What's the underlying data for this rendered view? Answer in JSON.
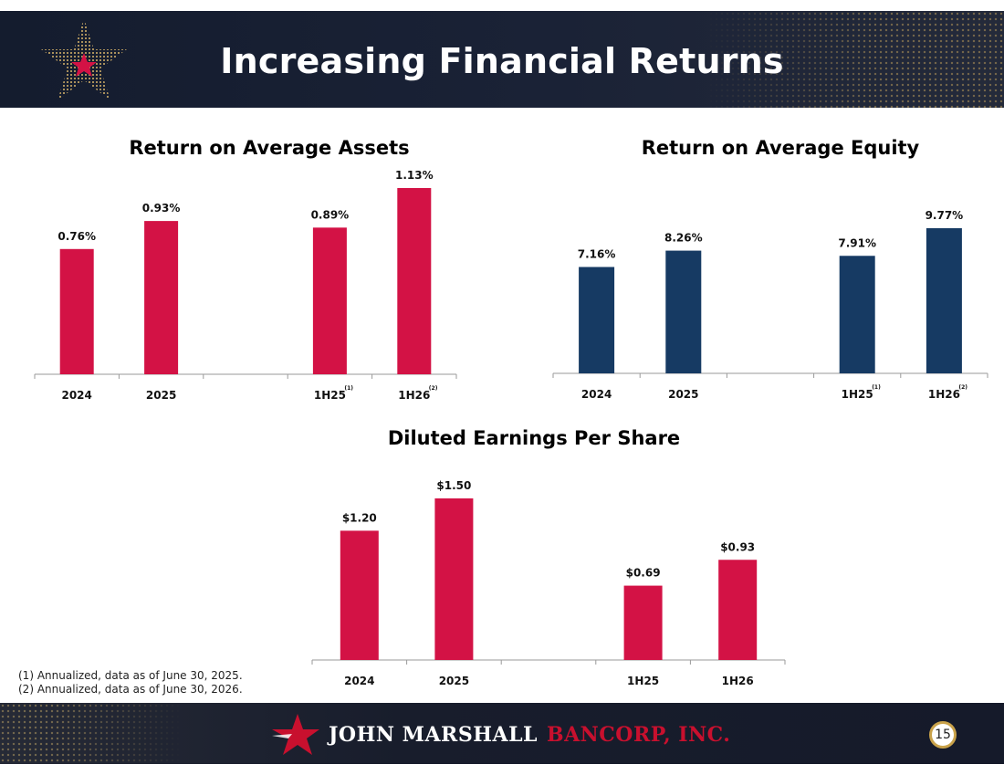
{
  "header": {
    "title": "Increasing Financial Returns",
    "logo_icon": "gold-star-logo-icon"
  },
  "colors": {
    "header_bg": "#141c2e",
    "red_bar": "#d31245",
    "navy_bar": "#163a63",
    "brand_red": "#c8102e",
    "gold": "#c9a24a"
  },
  "chart_data": [
    {
      "type": "bar",
      "title": "Return on Average Assets",
      "categories": [
        "2024",
        "2025",
        "",
        "1H25",
        "1H26"
      ],
      "category_notes": [
        "",
        "",
        "",
        "(1)",
        "(2)"
      ],
      "values": [
        0.76,
        0.93,
        null,
        0.89,
        1.13
      ],
      "data_labels": [
        "0.76%",
        "0.93%",
        "",
        "0.89%",
        "1.13%"
      ],
      "ylim": [
        0,
        1.13
      ],
      "color": "#d31245",
      "grid": false
    },
    {
      "type": "bar",
      "title": "Return on Average Equity",
      "categories": [
        "2024",
        "2025",
        "",
        "1H25",
        "1H26"
      ],
      "category_notes": [
        "",
        "",
        "",
        "(1)",
        "(2)"
      ],
      "values": [
        7.16,
        8.26,
        null,
        7.91,
        9.77
      ],
      "data_labels": [
        "7.16%",
        "8.26%",
        "",
        "7.91%",
        "9.77%"
      ],
      "ylim": [
        0,
        9.77
      ],
      "color": "#163a63",
      "grid": false
    },
    {
      "type": "bar",
      "title": "Diluted Earnings Per Share",
      "categories": [
        "2024",
        "2025",
        "",
        "1H25",
        "1H26"
      ],
      "category_notes": [
        "",
        "",
        "",
        "",
        ""
      ],
      "values": [
        1.2,
        1.5,
        null,
        0.69,
        0.93
      ],
      "data_labels": [
        "$1.20",
        "$1.50",
        "",
        "$0.69",
        "$0.93"
      ],
      "ylim": [
        0,
        1.5
      ],
      "color": "#d31245",
      "grid": false
    }
  ],
  "footnotes": [
    "(1)  Annualized, data as of June 30, 2025.",
    "(2)  Annualized, data as of June 30, 2026."
  ],
  "footer": {
    "brand_primary": "JOHN MARSHALL",
    "brand_accent": "BANCORP, INC.",
    "logo_icon": "red-star-logo-icon",
    "page_number": "15"
  }
}
